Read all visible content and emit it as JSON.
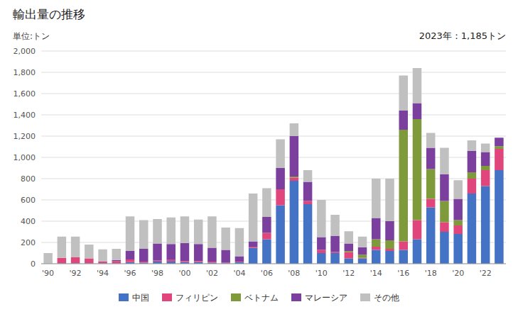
{
  "chart_data": {
    "type": "bar",
    "stacked": true,
    "title": "輸出量の推移",
    "y_label": "単位:トン",
    "annotation": "2023年：1,185トン",
    "categories": [
      "'90",
      null,
      "'92",
      null,
      "'94",
      null,
      "'96",
      null,
      "'98",
      null,
      "'00",
      null,
      "'02",
      null,
      "'04",
      null,
      "'06",
      null,
      "'08",
      null,
      "'10",
      null,
      "'12",
      null,
      "'14",
      null,
      "'16",
      null,
      "'18",
      null,
      "'20",
      null,
      "'22",
      null
    ],
    "series": [
      {
        "name": "中国",
        "color": "#4472C4",
        "values": [
          0,
          5,
          5,
          5,
          5,
          5,
          15,
          10,
          20,
          20,
          15,
          15,
          10,
          5,
          15,
          150,
          230,
          550,
          780,
          560,
          100,
          100,
          50,
          50,
          130,
          120,
          130,
          230,
          530,
          300,
          280,
          660,
          730,
          880
        ]
      },
      {
        "name": "フィリピン",
        "color": "#E0457B",
        "values": [
          0,
          50,
          55,
          45,
          15,
          20,
          25,
          10,
          10,
          15,
          10,
          10,
          10,
          5,
          5,
          10,
          60,
          150,
          30,
          30,
          30,
          10,
          60,
          5,
          30,
          20,
          80,
          180,
          80,
          90,
          80,
          140,
          150,
          200
        ]
      },
      {
        "name": "ベトナム",
        "color": "#7F9A3A",
        "values": [
          0,
          0,
          0,
          0,
          0,
          0,
          0,
          0,
          0,
          0,
          0,
          0,
          0,
          0,
          0,
          0,
          0,
          0,
          10,
          0,
          0,
          0,
          10,
          30,
          70,
          80,
          1050,
          950,
          280,
          200,
          50,
          60,
          40,
          25
        ]
      },
      {
        "name": "マレーシア",
        "color": "#7B3F9E",
        "values": [
          0,
          0,
          0,
          0,
          0,
          10,
          80,
          120,
          160,
          150,
          170,
          160,
          130,
          120,
          50,
          50,
          150,
          200,
          380,
          180,
          120,
          150,
          70,
          70,
          200,
          180,
          180,
          150,
          200,
          250,
          200,
          200,
          130,
          80
        ]
      },
      {
        "name": "その他",
        "color": "#C0C0C0",
        "values": [
          100,
          200,
          195,
          130,
          115,
          105,
          325,
          270,
          230,
          250,
          250,
          230,
          295,
          210,
          265,
          450,
          270,
          270,
          120,
          110,
          350,
          200,
          115,
          100,
          370,
          400,
          330,
          330,
          140,
          250,
          175,
          100,
          80,
          0
        ]
      }
    ],
    "ylim": [
      0,
      2000
    ],
    "yticks": [
      0,
      200,
      400,
      600,
      800,
      {
        "value": 1000,
        "label": "1,000"
      },
      {
        "value": 1200,
        "label": "1,200"
      },
      {
        "value": 1400,
        "label": "1,400"
      },
      {
        "value": 1600,
        "label": "1,600"
      },
      {
        "value": 1800,
        "label": "1,800"
      },
      {
        "value": 2000,
        "label": "2,000"
      }
    ],
    "grid": true,
    "legend": "bottom"
  }
}
